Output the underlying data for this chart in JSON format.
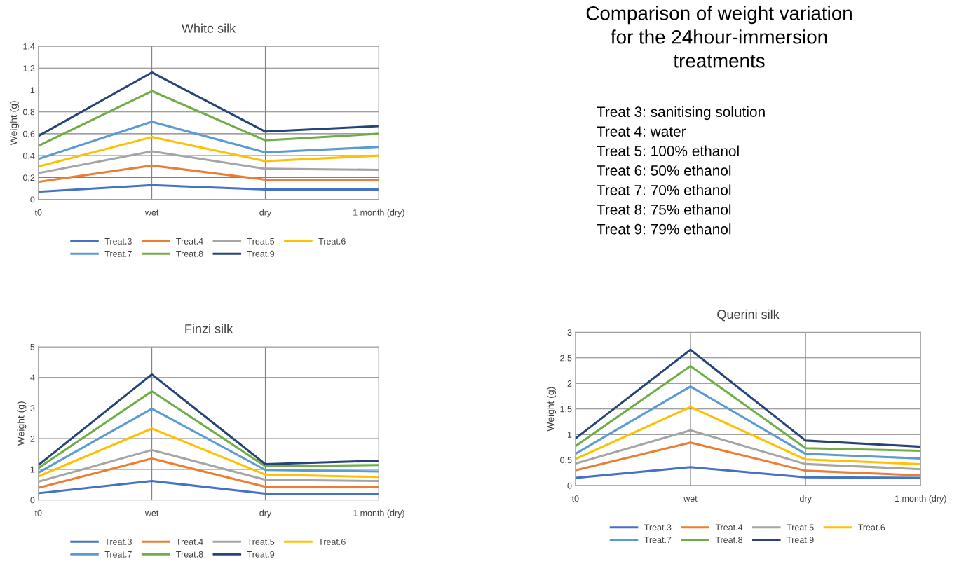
{
  "chart_data": [
    {
      "type": "line",
      "title": "White silk",
      "ylabel": "Weight (g)",
      "categories": [
        "t0",
        "wet",
        "dry",
        "1 month (dry)"
      ],
      "ylim": [
        0,
        1.4
      ],
      "yticks": [
        0,
        {
          "value": 0.2,
          "label": "0,2"
        },
        {
          "value": 0.4,
          "label": "0,4"
        },
        {
          "value": 0.6,
          "label": "0,6"
        },
        {
          "value": 0.8,
          "label": "0,8"
        },
        1,
        {
          "value": 1.2,
          "label": "1,2"
        },
        {
          "value": 1.4,
          "label": "1,4"
        }
      ],
      "grid": true,
      "legend": "bottom",
      "marker": "none",
      "line_style": "solid",
      "series": [
        {
          "name": "Treat.3",
          "color": "#4472c4",
          "values": [
            0.07,
            0.13,
            0.09,
            0.09
          ]
        },
        {
          "name": "Treat.4",
          "color": "#ed7d31",
          "values": [
            0.16,
            0.31,
            0.18,
            0.18
          ]
        },
        {
          "name": "Treat.5",
          "color": "#a5a5a5",
          "values": [
            0.24,
            0.44,
            0.28,
            0.27
          ]
        },
        {
          "name": "Treat.6",
          "color": "#ffc000",
          "values": [
            0.3,
            0.57,
            0.35,
            0.4
          ]
        },
        {
          "name": "Treat.7",
          "color": "#5b9bd5",
          "values": [
            0.37,
            0.71,
            0.43,
            0.48
          ]
        },
        {
          "name": "Treat.8",
          "color": "#70ad47",
          "values": [
            0.49,
            0.99,
            0.54,
            0.6
          ]
        },
        {
          "name": "Treat.9",
          "color": "#264478",
          "values": [
            0.58,
            1.16,
            0.62,
            0.67
          ]
        }
      ]
    },
    {
      "type": "other",
      "title": "Comparison of weight variation\nfor the 24hour-immersion\ntreatments",
      "annotations": [
        "Treat 3: sanitising solution",
        "Treat 4: water",
        "Treat 5: 100% ethanol",
        "Treat 6: 50% ethanol",
        "Treat 7: 70% ethanol",
        "Treat 8: 75% ethanol",
        "Treat 9: 79% ethanol"
      ]
    },
    {
      "type": "line",
      "title": "Finzi silk",
      "ylabel": "Weight (g)",
      "categories": [
        "t0",
        "wet",
        "dry",
        "1 month (dry)"
      ],
      "ylim": [
        0,
        5
      ],
      "yticks": [
        0,
        1,
        2,
        3,
        4,
        5
      ],
      "grid": true,
      "legend": "bottom",
      "marker": "none",
      "line_style": "solid",
      "series": [
        {
          "name": "Treat.3",
          "color": "#4472c4",
          "values": [
            0.22,
            0.62,
            0.21,
            0.21
          ]
        },
        {
          "name": "Treat.4",
          "color": "#ed7d31",
          "values": [
            0.4,
            1.35,
            0.43,
            0.43
          ]
        },
        {
          "name": "Treat.5",
          "color": "#a5a5a5",
          "values": [
            0.6,
            1.63,
            0.66,
            0.62
          ]
        },
        {
          "name": "Treat.6",
          "color": "#ffc000",
          "values": [
            0.77,
            2.33,
            0.83,
            0.75
          ]
        },
        {
          "name": "Treat.7",
          "color": "#5b9bd5",
          "values": [
            0.89,
            2.98,
            0.98,
            0.93
          ]
        },
        {
          "name": "Treat.8",
          "color": "#70ad47",
          "values": [
            1.04,
            3.55,
            1.1,
            1.14
          ]
        },
        {
          "name": "Treat.9",
          "color": "#264478",
          "values": [
            1.14,
            4.1,
            1.17,
            1.28
          ]
        }
      ]
    },
    {
      "type": "line",
      "title": "Querini silk",
      "ylabel": "Weight (g)",
      "categories": [
        "t0",
        "wet",
        "dry",
        "1 month (dry)"
      ],
      "ylim": [
        0,
        3
      ],
      "yticks": [
        0,
        {
          "value": 0.5,
          "label": "0,5"
        },
        1,
        {
          "value": 1.5,
          "label": "1,5"
        },
        2,
        {
          "value": 2.5,
          "label": "2,5"
        },
        3
      ],
      "grid": true,
      "legend": "bottom",
      "marker": "none",
      "line_style": "solid",
      "series": [
        {
          "name": "Treat.3",
          "color": "#4472c4",
          "values": [
            0.15,
            0.36,
            0.16,
            0.15
          ]
        },
        {
          "name": "Treat.4",
          "color": "#ed7d31",
          "values": [
            0.3,
            0.84,
            0.29,
            0.2
          ]
        },
        {
          "name": "Treat.5",
          "color": "#a5a5a5",
          "values": [
            0.43,
            1.08,
            0.42,
            0.32
          ]
        },
        {
          "name": "Treat.6",
          "color": "#ffc000",
          "values": [
            0.52,
            1.54,
            0.51,
            0.42
          ]
        },
        {
          "name": "Treat.7",
          "color": "#5b9bd5",
          "values": [
            0.62,
            1.94,
            0.62,
            0.53
          ]
        },
        {
          "name": "Treat.8",
          "color": "#70ad47",
          "values": [
            0.77,
            2.34,
            0.73,
            0.68
          ]
        },
        {
          "name": "Treat.9",
          "color": "#264478",
          "values": [
            0.92,
            2.66,
            0.88,
            0.76
          ]
        }
      ]
    }
  ]
}
